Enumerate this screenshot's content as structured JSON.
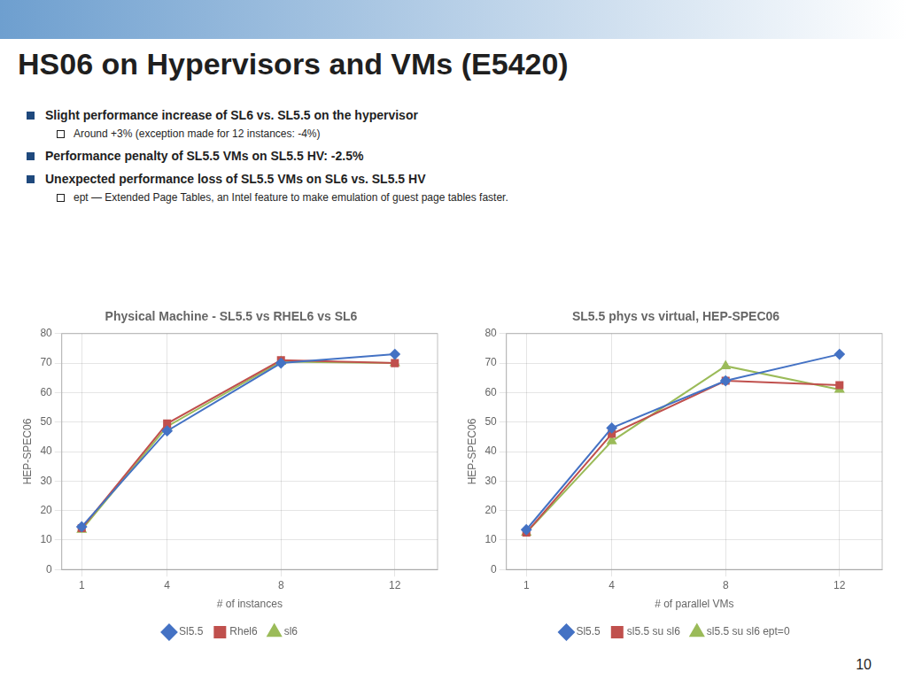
{
  "title": "HS06 on Hypervisors and VMs (E5420)",
  "bullets": [
    {
      "text": "Slight performance increase of SL6 vs. SL5.5 on the hypervisor",
      "sub": [
        "Around +3% (exception made for 12 instances: -4%)"
      ]
    },
    {
      "text": "Performance penalty of SL5.5 VMs on SL5.5 HV: -2.5%"
    },
    {
      "text": "Unexpected performance loss of SL5.5 VMs on SL6 vs. SL5.5 HV",
      "sub": [
        "ept — Extended Page Tables, an Intel feature to make emulation of guest page tables faster."
      ]
    }
  ],
  "page_number": "10",
  "chart_data": [
    {
      "type": "line",
      "title": "Physical Machine - SL5.5 vs RHEL6 vs SL6",
      "x_label": "# of instances",
      "y_label": "HEP-SPEC06",
      "x": [
        1,
        4,
        8,
        12
      ],
      "xlim": [
        0.3,
        13.5
      ],
      "xticks": [
        1,
        4,
        8,
        12
      ],
      "ylim": [
        0,
        80
      ],
      "yticks": [
        0,
        10,
        20,
        30,
        40,
        50,
        60,
        70,
        80
      ],
      "grid": true,
      "legend": "bottom",
      "series": [
        {
          "name": "Sl5.5",
          "color": "#4472C4",
          "marker": "diamond",
          "values": [
            14.5,
            47,
            70,
            73
          ]
        },
        {
          "name": "Rhel6",
          "color": "#C0504D",
          "marker": "square",
          "values": [
            14,
            49.5,
            71,
            70
          ]
        },
        {
          "name": "sl6",
          "color": "#9BBB59",
          "marker": "triangle",
          "values": [
            13.5,
            48.5,
            70.5,
            70
          ]
        }
      ]
    },
    {
      "type": "line",
      "title": "SL5.5 phys vs virtual, HEP-SPEC06",
      "x_label": "# of parallel VMs",
      "y_label": "HEP-SPEC06",
      "x": [
        1,
        4,
        8,
        12
      ],
      "xlim": [
        0.3,
        13.5
      ],
      "xticks": [
        1,
        4,
        8,
        12
      ],
      "ylim": [
        0,
        80
      ],
      "yticks": [
        0,
        10,
        20,
        30,
        40,
        50,
        60,
        70,
        80
      ],
      "grid": true,
      "legend": "bottom",
      "series": [
        {
          "name": "Sl5.5",
          "color": "#4472C4",
          "marker": "diamond",
          "values": [
            13.5,
            48,
            64,
            73
          ]
        },
        {
          "name": "sl5.5 su sl6",
          "color": "#C0504D",
          "marker": "square",
          "values": [
            12.5,
            46,
            64,
            62.5
          ]
        },
        {
          "name": "sl5.5 su sl6 ept=0",
          "color": "#9BBB59",
          "marker": "triangle",
          "values": [
            12.5,
            43.5,
            69,
            61
          ]
        }
      ]
    }
  ]
}
